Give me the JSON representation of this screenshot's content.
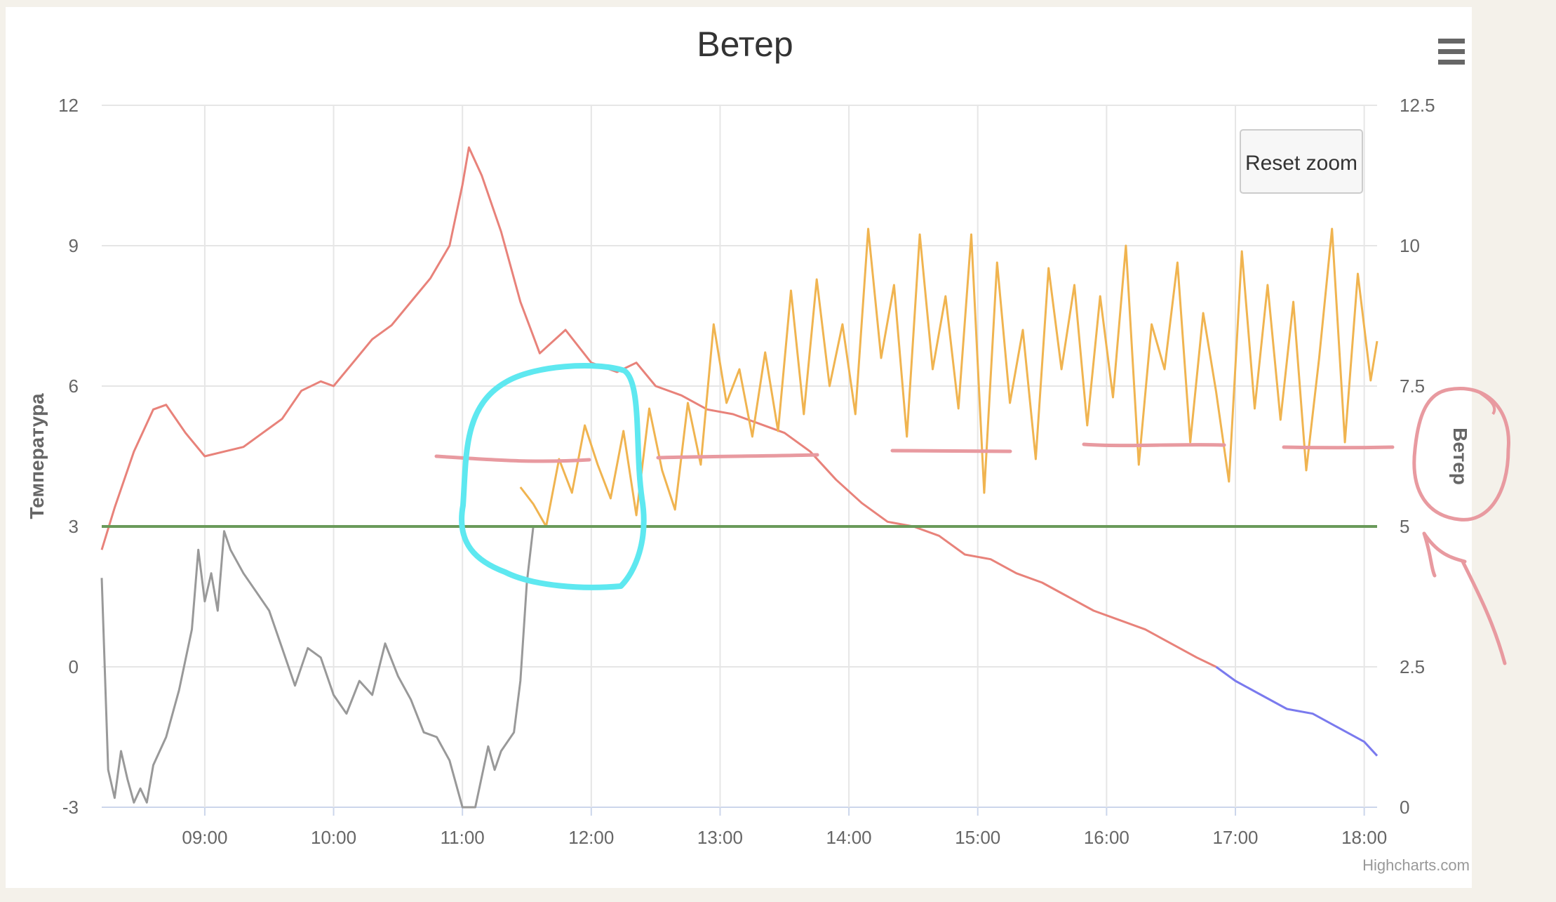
{
  "chart_data": {
    "type": "line",
    "title": "Ветер",
    "xlabel": "",
    "ylabel_left": "Температура",
    "ylabel_right": "Ветер",
    "x_ticks": [
      "09:00",
      "10:00",
      "11:00",
      "12:00",
      "13:00",
      "14:00",
      "15:00",
      "16:00",
      "17:00",
      "18:00"
    ],
    "x_range_hours": [
      8.2,
      18.1
    ],
    "ylim_left": [
      -3,
      12
    ],
    "yticks_left": [
      "12",
      "9",
      "6",
      "3",
      "0",
      "-3"
    ],
    "ylim_right": [
      0,
      12.5
    ],
    "yticks_right": [
      "12.5",
      "10",
      "7.5",
      "5",
      "2.5",
      "0"
    ],
    "grid": true,
    "reset_zoom_label": "Reset zoom",
    "menu_icon": "hamburger-menu-icon",
    "credit": "Highcharts.com",
    "threshold_left_value": 3,
    "series": [
      {
        "axis": "left",
        "color": "#e8827a",
        "points": [
          [
            8.2,
            2.5
          ],
          [
            8.3,
            3.4
          ],
          [
            8.45,
            4.6
          ],
          [
            8.6,
            5.5
          ],
          [
            8.7,
            5.6
          ],
          [
            8.85,
            5.0
          ],
          [
            9.0,
            4.5
          ],
          [
            9.15,
            4.6
          ],
          [
            9.3,
            4.7
          ],
          [
            9.45,
            5.0
          ],
          [
            9.6,
            5.3
          ],
          [
            9.75,
            5.9
          ],
          [
            9.9,
            6.1
          ],
          [
            10.0,
            6.0
          ],
          [
            10.15,
            6.5
          ],
          [
            10.3,
            7.0
          ],
          [
            10.45,
            7.3
          ],
          [
            10.6,
            7.8
          ],
          [
            10.75,
            8.3
          ],
          [
            10.9,
            9.0
          ],
          [
            11.0,
            10.3
          ],
          [
            11.05,
            11.1
          ],
          [
            11.15,
            10.5
          ],
          [
            11.3,
            9.3
          ],
          [
            11.45,
            7.8
          ],
          [
            11.6,
            6.7
          ],
          [
            11.8,
            7.2
          ],
          [
            12.0,
            6.5
          ],
          [
            12.2,
            6.3
          ],
          [
            12.35,
            6.5
          ],
          [
            12.5,
            6.0
          ],
          [
            12.7,
            5.8
          ],
          [
            12.9,
            5.5
          ],
          [
            13.1,
            5.4
          ],
          [
            13.3,
            5.2
          ],
          [
            13.5,
            5.0
          ],
          [
            13.7,
            4.6
          ],
          [
            13.9,
            4.0
          ],
          [
            14.1,
            3.5
          ],
          [
            14.3,
            3.1
          ],
          [
            14.5,
            3.0
          ],
          [
            14.7,
            2.8
          ],
          [
            14.9,
            2.4
          ],
          [
            15.1,
            2.3
          ],
          [
            15.3,
            2.0
          ],
          [
            15.5,
            1.8
          ],
          [
            15.7,
            1.5
          ],
          [
            15.9,
            1.2
          ],
          [
            16.1,
            1.0
          ],
          [
            16.3,
            0.8
          ],
          [
            16.5,
            0.5
          ],
          [
            16.7,
            0.2
          ],
          [
            16.85,
            0.0
          ]
        ]
      },
      {
        "axis": "left",
        "color": "#7a7aee",
        "points": [
          [
            16.85,
            0.0
          ],
          [
            17.0,
            -0.3
          ],
          [
            17.2,
            -0.6
          ],
          [
            17.4,
            -0.9
          ],
          [
            17.6,
            -1.0
          ],
          [
            17.8,
            -1.3
          ],
          [
            18.0,
            -1.6
          ],
          [
            18.1,
            -1.9
          ]
        ]
      },
      {
        "axis": "left",
        "color": "#999999",
        "points": [
          [
            8.2,
            1.9
          ],
          [
            8.25,
            -2.2
          ],
          [
            8.3,
            -2.8
          ],
          [
            8.35,
            -1.8
          ],
          [
            8.4,
            -2.4
          ],
          [
            8.45,
            -2.9
          ],
          [
            8.5,
            -2.6
          ],
          [
            8.55,
            -2.9
          ],
          [
            8.6,
            -2.1
          ],
          [
            8.7,
            -1.5
          ],
          [
            8.8,
            -0.5
          ],
          [
            8.9,
            0.8
          ],
          [
            8.95,
            2.5
          ],
          [
            9.0,
            1.4
          ],
          [
            9.05,
            2.0
          ],
          [
            9.1,
            1.2
          ],
          [
            9.15,
            2.9
          ],
          [
            9.2,
            2.5
          ],
          [
            9.3,
            2.0
          ],
          [
            9.4,
            1.6
          ],
          [
            9.5,
            1.2
          ],
          [
            9.6,
            0.4
          ],
          [
            9.7,
            -0.4
          ],
          [
            9.8,
            0.4
          ],
          [
            9.9,
            0.2
          ],
          [
            10.0,
            -0.6
          ],
          [
            10.1,
            -1.0
          ],
          [
            10.2,
            -0.3
          ],
          [
            10.3,
            -0.6
          ],
          [
            10.4,
            0.5
          ],
          [
            10.5,
            -0.2
          ],
          [
            10.6,
            -0.7
          ],
          [
            10.7,
            -1.4
          ],
          [
            10.8,
            -1.5
          ],
          [
            10.9,
            -2.0
          ],
          [
            11.0,
            -3.0
          ],
          [
            11.1,
            -3.0
          ],
          [
            11.2,
            -1.7
          ],
          [
            11.25,
            -2.2
          ],
          [
            11.3,
            -1.8
          ],
          [
            11.4,
            -1.4
          ],
          [
            11.45,
            -0.3
          ],
          [
            11.5,
            1.8
          ],
          [
            11.55,
            3.0
          ]
        ]
      },
      {
        "axis": "right",
        "color": "#f0b450",
        "points": [
          [
            11.45,
            5.7
          ],
          [
            11.55,
            5.4
          ],
          [
            11.65,
            5.0
          ],
          [
            11.75,
            6.2
          ],
          [
            11.85,
            5.6
          ],
          [
            11.95,
            6.8
          ],
          [
            12.05,
            6.1
          ],
          [
            12.15,
            5.5
          ],
          [
            12.25,
            6.7
          ],
          [
            12.35,
            5.2
          ],
          [
            12.45,
            7.1
          ],
          [
            12.55,
            6.0
          ],
          [
            12.65,
            5.3
          ],
          [
            12.75,
            7.2
          ],
          [
            12.85,
            6.1
          ],
          [
            12.95,
            8.6
          ],
          [
            13.05,
            7.2
          ],
          [
            13.15,
            7.8
          ],
          [
            13.25,
            6.6
          ],
          [
            13.35,
            8.1
          ],
          [
            13.45,
            6.7
          ],
          [
            13.55,
            9.2
          ],
          [
            13.65,
            7.0
          ],
          [
            13.75,
            9.4
          ],
          [
            13.85,
            7.5
          ],
          [
            13.95,
            8.6
          ],
          [
            14.05,
            7.0
          ],
          [
            14.15,
            10.3
          ],
          [
            14.25,
            8.0
          ],
          [
            14.35,
            9.3
          ],
          [
            14.45,
            6.6
          ],
          [
            14.55,
            10.2
          ],
          [
            14.65,
            7.8
          ],
          [
            14.75,
            9.1
          ],
          [
            14.85,
            7.1
          ],
          [
            14.95,
            10.2
          ],
          [
            15.05,
            5.6
          ],
          [
            15.15,
            9.7
          ],
          [
            15.25,
            7.2
          ],
          [
            15.35,
            8.5
          ],
          [
            15.45,
            6.2
          ],
          [
            15.55,
            9.6
          ],
          [
            15.65,
            7.8
          ],
          [
            15.75,
            9.3
          ],
          [
            15.85,
            6.8
          ],
          [
            15.95,
            9.1
          ],
          [
            16.05,
            7.3
          ],
          [
            16.15,
            10.0
          ],
          [
            16.25,
            6.1
          ],
          [
            16.35,
            8.6
          ],
          [
            16.45,
            7.8
          ],
          [
            16.55,
            9.7
          ],
          [
            16.65,
            6.5
          ],
          [
            16.75,
            8.8
          ],
          [
            16.85,
            7.4
          ],
          [
            16.95,
            5.8
          ],
          [
            17.05,
            9.9
          ],
          [
            17.15,
            7.1
          ],
          [
            17.25,
            9.3
          ],
          [
            17.35,
            6.9
          ],
          [
            17.45,
            9.0
          ],
          [
            17.55,
            6.0
          ],
          [
            17.65,
            8.0
          ],
          [
            17.75,
            10.3
          ],
          [
            17.85,
            6.5
          ],
          [
            17.95,
            9.5
          ],
          [
            18.05,
            7.6
          ],
          [
            18.1,
            8.3
          ]
        ]
      }
    ]
  }
}
